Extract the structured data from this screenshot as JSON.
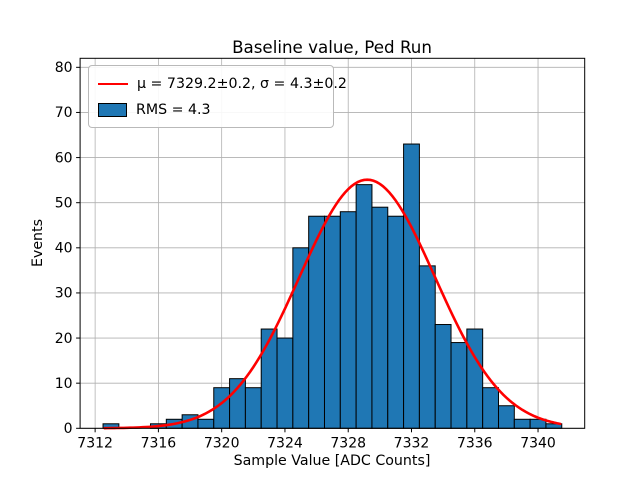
{
  "figure": {
    "title": "Baseline value, Ped Run",
    "xlabel": "Sample Value [ADC Counts]",
    "ylabel": "Events"
  },
  "legend": {
    "fit_label": "μ = 7329.2±0.2, σ = 4.3±0.2",
    "hist_label": "RMS = 4.3"
  },
  "chart_data": {
    "type": "bar",
    "subtype": "histogram",
    "title": "Baseline value, Ped Run",
    "xlabel": "Sample Value [ADC Counts]",
    "ylabel": "Events",
    "bin_width": 1,
    "bin_centers": [
      7313,
      7314,
      7315,
      7316,
      7317,
      7318,
      7319,
      7320,
      7321,
      7322,
      7323,
      7324,
      7325,
      7326,
      7327,
      7328,
      7329,
      7330,
      7331,
      7332,
      7333,
      7334,
      7335,
      7336,
      7337,
      7338,
      7339,
      7340,
      7341
    ],
    "counts": [
      1,
      0,
      0,
      1,
      2,
      3,
      2,
      9,
      11,
      9,
      22,
      20,
      40,
      47,
      47,
      48,
      54,
      49,
      47,
      63,
      36,
      23,
      19,
      22,
      9,
      5,
      2,
      2,
      1
    ],
    "total_events": 594,
    "rms": 4.3,
    "fit": {
      "type": "gaussian",
      "mu": 7329.2,
      "mu_err": 0.2,
      "sigma": 4.3,
      "sigma_err": 0.2,
      "amplitude": 55.1,
      "x_start": 7312.6,
      "x_end": 7341.4,
      "label": "μ = 7329.2±0.2, σ = 4.3±0.2"
    },
    "x_ticks": [
      7312,
      7316,
      7320,
      7324,
      7328,
      7332,
      7336,
      7340
    ],
    "y_ticks": [
      0,
      10,
      20,
      30,
      40,
      50,
      60,
      70,
      80
    ],
    "xlim": [
      7311.05,
      7342.95
    ],
    "ylim": [
      0,
      82
    ],
    "grid": true,
    "legend_position": "upper left",
    "colors": {
      "bar_fill": "#1f77b4",
      "bar_edge": "#000000",
      "fit_line": "#ff0000",
      "grid_line": "#b0b0b0",
      "spine": "#000000",
      "background": "#ffffff"
    }
  }
}
